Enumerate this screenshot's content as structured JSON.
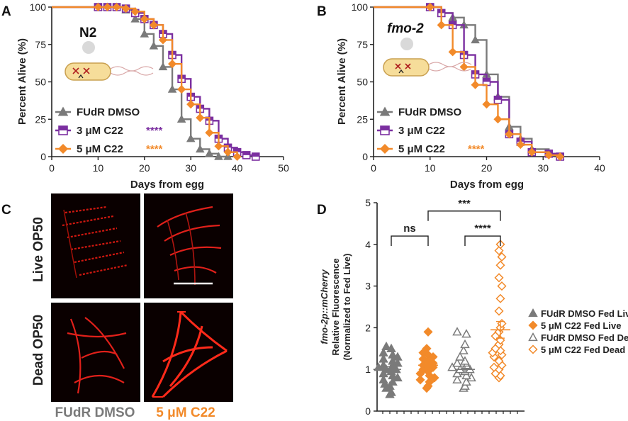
{
  "colors": {
    "gray": "#7a7a7a",
    "purple": "#7b2fa0",
    "orange": "#f28a2a",
    "red": "#ff2a1a",
    "black": "#222222"
  },
  "panels": {
    "A": "A",
    "B": "B",
    "C": "C",
    "D": "D"
  },
  "chart_data": [
    {
      "panel": "A",
      "type": "line",
      "title": "N2",
      "xlabel": "Days from egg",
      "ylabel": "Percent Alive (%)",
      "xlim": [
        0,
        50
      ],
      "ylim": [
        0,
        100
      ],
      "xticks": [
        "0",
        "10",
        "20",
        "30",
        "40",
        "50"
      ],
      "yticks": [
        "0",
        "25",
        "50",
        "75",
        "100"
      ],
      "legend": [
        {
          "label": "FUdR DMSO",
          "sig": ""
        },
        {
          "label": "3 μM C22",
          "sig": "****"
        },
        {
          "label": "5 μM C22",
          "sig": "****"
        }
      ],
      "series": [
        {
          "name": "FUdR DMSO",
          "marker": "triangle",
          "x": [
            0,
            10,
            12,
            14,
            16,
            18,
            20,
            22,
            24,
            26,
            28,
            30,
            32,
            34,
            36,
            38
          ],
          "y": [
            100,
            100,
            100,
            100,
            98,
            92,
            82,
            74,
            60,
            45,
            25,
            12,
            5,
            2,
            0,
            0
          ]
        },
        {
          "name": "3 μM C22",
          "marker": "square",
          "x": [
            0,
            10,
            12,
            14,
            16,
            18,
            20,
            22,
            24,
            26,
            28,
            30,
            32,
            34,
            36,
            38,
            40,
            42,
            44
          ],
          "y": [
            100,
            100,
            100,
            100,
            99,
            96,
            92,
            88,
            82,
            68,
            52,
            40,
            32,
            24,
            12,
            6,
            3,
            1,
            0
          ]
        },
        {
          "name": "5 μM C22",
          "marker": "diamond",
          "x": [
            0,
            10,
            12,
            14,
            16,
            18,
            20,
            22,
            24,
            26,
            28,
            30,
            32,
            34,
            36,
            38,
            40
          ],
          "y": [
            100,
            100,
            100,
            100,
            99,
            97,
            92,
            88,
            78,
            62,
            45,
            35,
            26,
            16,
            7,
            3,
            0
          ]
        }
      ]
    },
    {
      "panel": "B",
      "type": "line",
      "title": "fmo-2",
      "xlabel": "Days from egg",
      "ylabel": "Percent Alive (%)",
      "xlim": [
        0,
        40
      ],
      "ylim": [
        0,
        100
      ],
      "xticks": [
        "0",
        "10",
        "20",
        "30",
        "40"
      ],
      "yticks": [
        "0",
        "25",
        "50",
        "75",
        "100"
      ],
      "legend": [
        {
          "label": "FUdR DMSO",
          "sig": ""
        },
        {
          "label": "3 μM C22",
          "sig": ""
        },
        {
          "label": "5 μM C22",
          "sig": "****"
        }
      ],
      "series": [
        {
          "name": "FUdR DMSO",
          "marker": "triangle",
          "x": [
            0,
            10,
            12,
            14,
            16,
            18,
            20,
            22,
            24,
            26,
            28,
            31,
            33
          ],
          "y": [
            100,
            100,
            96,
            93,
            88,
            78,
            55,
            40,
            20,
            12,
            5,
            2,
            0
          ]
        },
        {
          "name": "3 μM C22",
          "marker": "square",
          "x": [
            0,
            10,
            12,
            14,
            16,
            18,
            20,
            22,
            24,
            26,
            28,
            31,
            33
          ],
          "y": [
            100,
            100,
            96,
            88,
            68,
            55,
            50,
            38,
            15,
            10,
            3,
            2,
            0
          ]
        },
        {
          "name": "5 μM C22",
          "marker": "diamond",
          "x": [
            0,
            10,
            12,
            14,
            16,
            18,
            20,
            22,
            24,
            26,
            28,
            31,
            33
          ],
          "y": [
            100,
            100,
            88,
            70,
            60,
            48,
            35,
            25,
            15,
            8,
            3,
            1,
            0
          ]
        }
      ]
    },
    {
      "panel": "D",
      "type": "scatter",
      "ylabel_lines": [
        "fmo-2p::mCherry",
        "Relative Fluorescence",
        "(Normalized to Fed Live)"
      ],
      "ylim": [
        0,
        5
      ],
      "yticks": [
        "0",
        "1",
        "2",
        "3",
        "4",
        "5"
      ],
      "significance": [
        {
          "label": "ns",
          "from": 0,
          "to": 1,
          "level": 4.2
        },
        {
          "label": "***",
          "from": 1,
          "to": 3,
          "level": 4.8
        },
        {
          "label": "****",
          "from": 2,
          "to": 3,
          "level": 4.2
        }
      ],
      "groups": [
        {
          "name": "FUdR DMSO Fed Live",
          "marker": "triangle",
          "filled": true,
          "mean": 1.0,
          "sem": 0.07,
          "values": [
            0.4,
            0.45,
            0.55,
            0.6,
            0.65,
            0.7,
            0.75,
            0.8,
            0.85,
            0.9,
            0.95,
            1.0,
            1.0,
            1.05,
            1.1,
            1.1,
            1.15,
            1.2,
            1.25,
            1.3,
            1.35,
            1.4,
            1.5,
            1.55
          ]
        },
        {
          "name": "5 μM C22 Fed Live",
          "marker": "diamond",
          "filled": true,
          "mean": 1.1,
          "sem": 0.07,
          "values": [
            0.55,
            0.6,
            0.7,
            0.75,
            0.8,
            0.85,
            0.9,
            0.95,
            1.0,
            1.05,
            1.1,
            1.1,
            1.15,
            1.2,
            1.25,
            1.3,
            1.35,
            1.4,
            1.5,
            1.9
          ]
        },
        {
          "name": "FUdR DMSO Fed Dead",
          "marker": "triangle",
          "filled": false,
          "mean": 1.0,
          "sem": 0.08,
          "values": [
            0.55,
            0.6,
            0.7,
            0.75,
            0.8,
            0.85,
            0.9,
            0.95,
            1.0,
            1.0,
            1.05,
            1.1,
            1.15,
            1.2,
            1.3,
            1.45,
            1.6,
            1.85,
            1.9
          ]
        },
        {
          "name": "5 μM C22 Fed Dead",
          "marker": "diamond",
          "filled": false,
          "mean": 1.95,
          "sem": 0.2,
          "values": [
            0.8,
            0.85,
            0.9,
            1.0,
            1.05,
            1.1,
            1.2,
            1.3,
            1.35,
            1.4,
            1.45,
            1.5,
            1.6,
            1.7,
            1.8,
            1.9,
            2.0,
            2.1,
            2.4,
            2.7,
            3.0,
            3.2,
            3.5,
            3.7,
            3.85,
            4.0
          ]
        }
      ]
    }
  ],
  "panelA": {
    "strain": "N2"
  },
  "panelB": {
    "strain": "fmo-2"
  },
  "panelC": {
    "row_labels": [
      "Live OP50",
      "Dead OP50"
    ],
    "col_labels": [
      "FUdR DMSO",
      "5 μM C22"
    ]
  }
}
